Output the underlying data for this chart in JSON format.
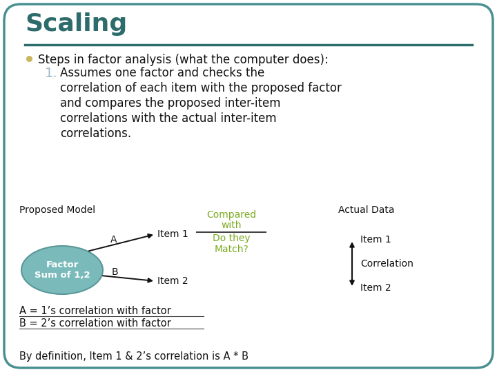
{
  "title": "Scaling",
  "title_color": "#2E6B6B",
  "title_fontsize": 26,
  "bg_color": "#FFFFFF",
  "border_color": "#4A9090",
  "bullet_color": "#C8B860",
  "bullet_text": "Steps in factor analysis (what the computer does):",
  "number_color": "#A0B8C8",
  "item1_lines": [
    "Assumes one factor and checks the",
    "correlation of each item with the proposed factor",
    "and compares the proposed inter-item",
    "correlations with the actual inter-item",
    "correlations."
  ],
  "proposed_model_label": "Proposed Model",
  "compared_line1": "Compared",
  "compared_line2": "with",
  "do_they_match": "Do they\nMatch?",
  "actual_data_label": "Actual Data",
  "factor_ellipse_label": "Factor\nSum of 1,2",
  "ellipse_color": "#7BBABA",
  "ellipse_edge": "#5A9898",
  "item1_label": "Item 1",
  "item2_label": "Item 2",
  "a_label": "A",
  "b_label": "B",
  "arrow_color": "#111111",
  "corr_label": "Correlation",
  "eq_a": "A = 1’s correlation with factor",
  "eq_b": "B = 2’s correlation with factor",
  "by_def": "By definition, Item 1 & 2’s correlation is A * B",
  "green_color": "#7AAA20",
  "text_color": "#111111",
  "line_color": "#444444",
  "divider_color": "#2E6B6B",
  "bullet_fontsize": 12,
  "body_fontsize": 12,
  "diagram_fontsize": 10,
  "eq_fontsize": 10.5
}
